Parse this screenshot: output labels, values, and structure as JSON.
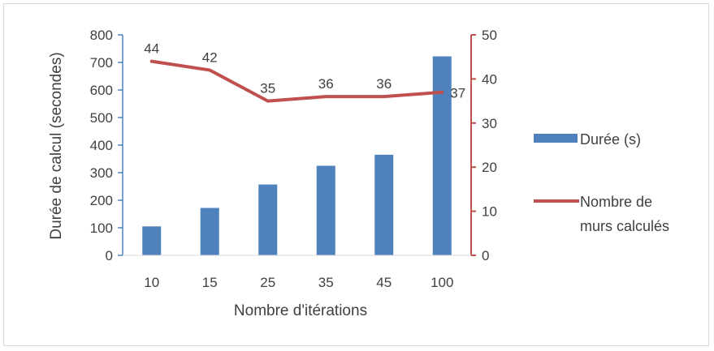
{
  "chart_data": {
    "type": "bar",
    "title": "",
    "categories": [
      "10",
      "15",
      "25",
      "35",
      "45",
      "100"
    ],
    "xlabel": "Nombre d'itérations",
    "ylabel": "Durée de calcul (secondes)",
    "ylim": [
      0,
      800
    ],
    "yticks": [
      "0",
      "100",
      "200",
      "300",
      "400",
      "500",
      "600",
      "700",
      "800"
    ],
    "y2lim": [
      0,
      50
    ],
    "y2ticks": [
      "0",
      "10",
      "20",
      "30",
      "40",
      "50"
    ],
    "grid": false,
    "legend_position": "right",
    "series": [
      {
        "name": "Durée (s)",
        "type": "bar",
        "axis": "left",
        "color": "#4f81bd",
        "values": [
          105,
          172,
          257,
          325,
          365,
          722
        ]
      },
      {
        "name": "Nombre de murs calculés",
        "legend_lines": [
          "Nombre de",
          "murs calculés"
        ],
        "type": "line",
        "axis": "right",
        "color": "#c0504d",
        "values": [
          44,
          42,
          35,
          36,
          36,
          37
        ],
        "data_labels": [
          "44",
          "42",
          "35",
          "36",
          "36",
          "37"
        ]
      }
    ],
    "axis_colors": {
      "left": "#4f81bd",
      "right": "#c0504d"
    }
  }
}
